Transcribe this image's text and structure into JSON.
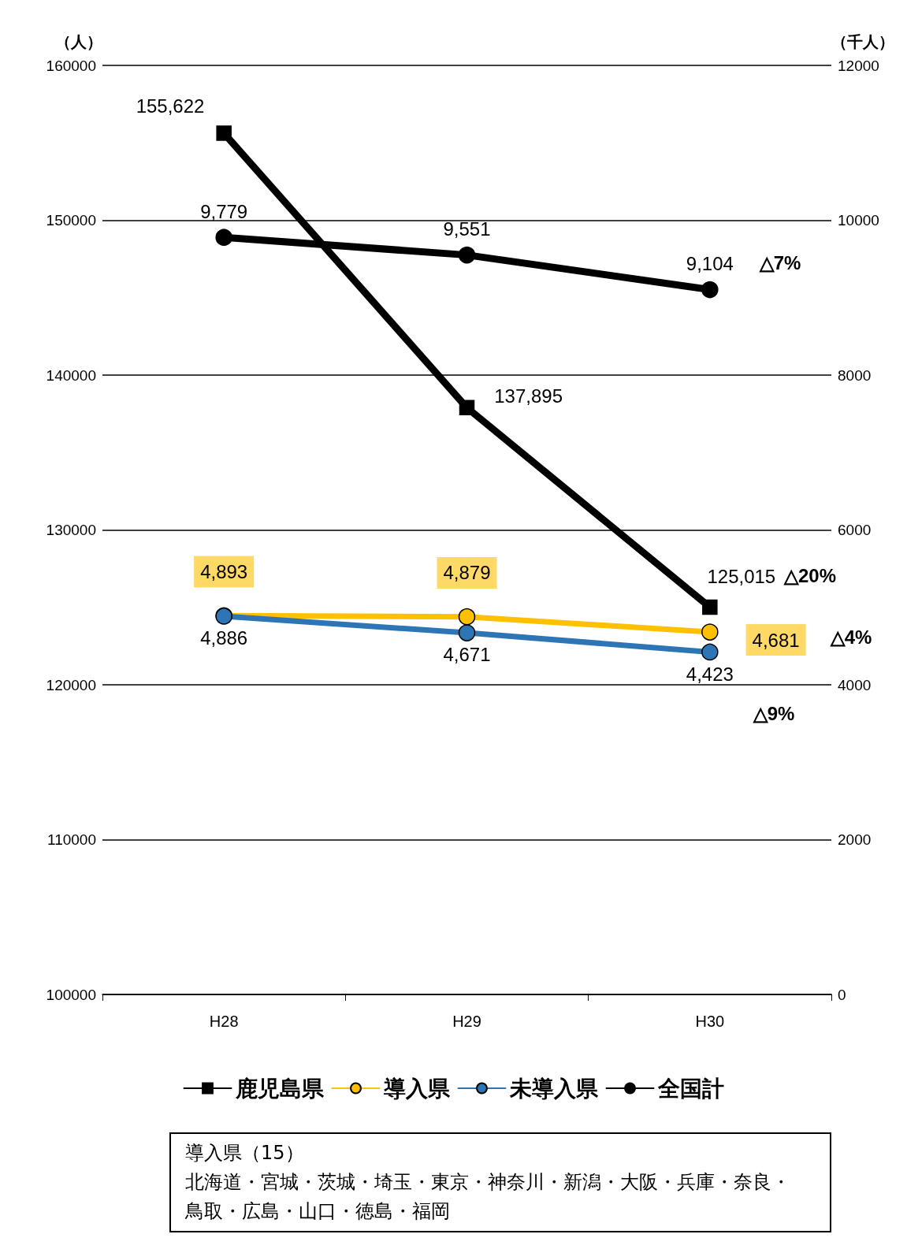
{
  "chart_data": {
    "type": "line",
    "ylabel": "（人）",
    "y2label": "（千人）",
    "categories": [
      "H28",
      "H29",
      "H30"
    ],
    "ylim": [
      100000,
      160000
    ],
    "yticks": [
      100000,
      110000,
      120000,
      130000,
      140000,
      150000,
      160000
    ],
    "y2lim": [
      0,
      12000
    ],
    "y2ticks": [
      0,
      2000,
      4000,
      6000,
      8000,
      10000,
      12000
    ],
    "grid": "y",
    "legend": "bottom",
    "series": [
      {
        "name": "鹿児島県",
        "color": "#000000",
        "marker": "square",
        "values": [
          155622,
          137895,
          125015
        ],
        "value_labels": [
          "155,622",
          "137,895",
          "125,015"
        ]
      },
      {
        "name": "導入県",
        "color": "#ffc000",
        "marker": "circle",
        "axis": "y2",
        "values": [
          4893,
          4879,
          4681
        ],
        "value_labels": [
          "4,893",
          "4,879",
          "4,681"
        ]
      },
      {
        "name": "未導入県",
        "color": "#2e75b6",
        "marker": "circle",
        "axis": "y2",
        "values": [
          4886,
          4671,
          4423
        ],
        "value_labels": [
          "4,886",
          "4,671",
          "4,423"
        ]
      },
      {
        "name": "全国計",
        "color": "#000000",
        "marker": "circle",
        "axis": "y2",
        "values": [
          9779,
          9551,
          9104
        ],
        "value_labels": [
          "9,779",
          "9,551",
          "9,104"
        ]
      }
    ],
    "annotations": [
      "△7%",
      "△20%",
      "△4%",
      "△9%",
      "導入県（15）",
      "北海道・宮城・茨城・埼玉・東京・神奈川・新潟・大阪・兵庫・奈良・",
      "鳥取・広島・山口・徳島・福岡"
    ]
  }
}
